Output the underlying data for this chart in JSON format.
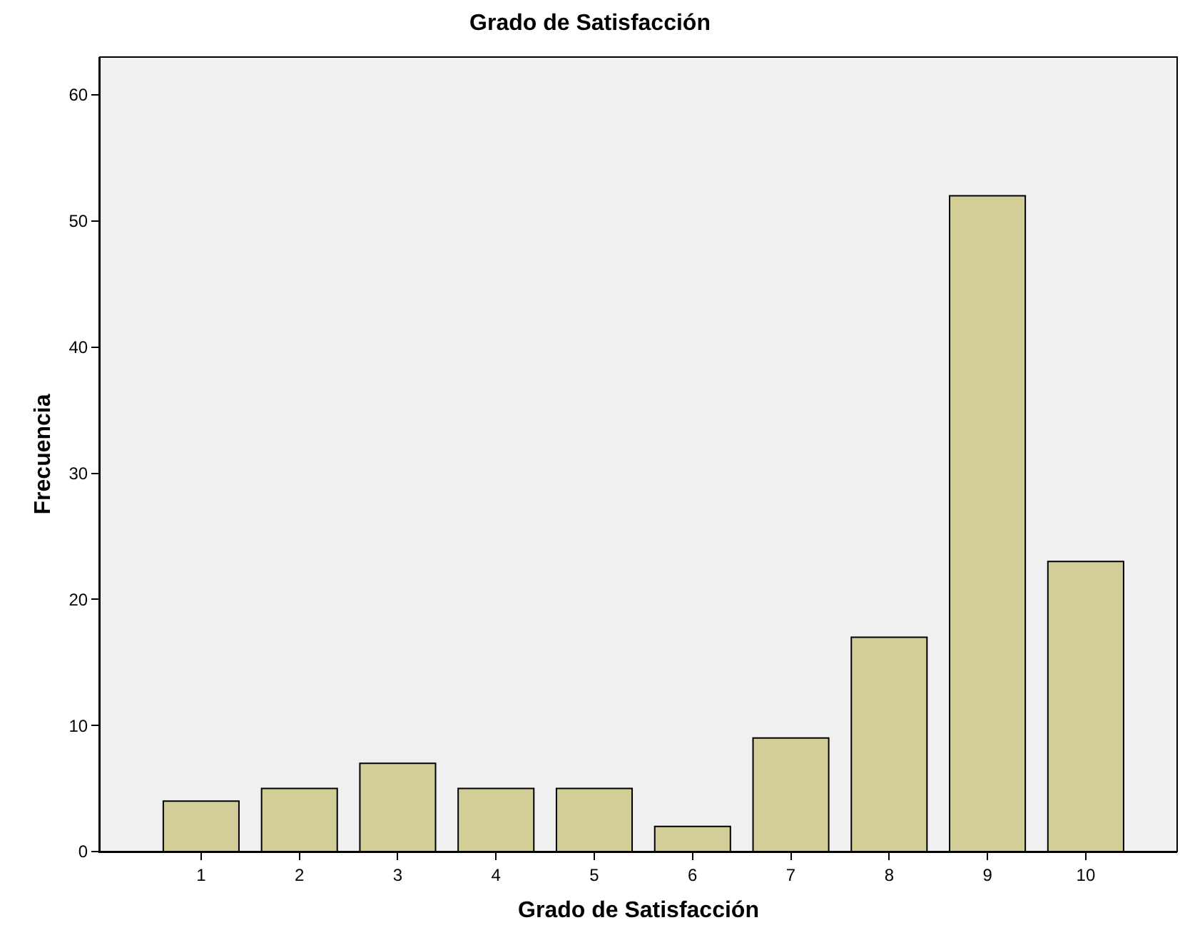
{
  "chart_data": {
    "type": "bar",
    "title": "Grado de Satisfacción",
    "xlabel": "Grado de Satisfacción",
    "ylabel": "Frecuencia",
    "categories": [
      "1",
      "2",
      "3",
      "4",
      "5",
      "6",
      "7",
      "8",
      "9",
      "10"
    ],
    "values": [
      4,
      5,
      7,
      5,
      5,
      2,
      9,
      17,
      52,
      23
    ],
    "color": "#d3cd98",
    "ylim": [
      0,
      63
    ],
    "yticks": [
      0,
      10,
      20,
      30,
      40,
      50,
      60
    ],
    "grid": false,
    "legend": false
  }
}
